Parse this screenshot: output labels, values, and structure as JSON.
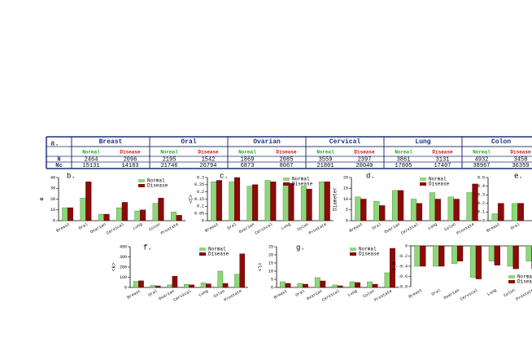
{
  "table": {
    "label": "a.",
    "columns": [
      "Breast",
      "Oral",
      "Ovarian",
      "Cervical",
      "Lung",
      "Colon"
    ],
    "subheaders": [
      "Normal",
      "Disease"
    ],
    "rows": [
      {
        "label": "N",
        "values": [
          2464,
          2096,
          2195,
          1542,
          1869,
          2085,
          3559,
          2397,
          3861,
          3131,
          4932,
          3458
        ]
      },
      {
        "label": "Nc",
        "values": [
          15131,
          14183,
          21746,
          26794,
          6873,
          8067,
          21801,
          20040,
          17805,
          17407,
          38967,
          36359
        ]
      }
    ]
  },
  "chart_data": [
    {
      "type": "bar",
      "title": "b.",
      "ylabel": "Φ",
      "legend": true,
      "categories": [
        "Breast",
        "Oral",
        "Ovarian",
        "Cervical",
        "Lung",
        "Colon",
        "Prostate"
      ],
      "series": [
        {
          "name": "Normal",
          "color": "#8fd67a",
          "values": [
            12,
            21,
            6,
            12,
            9,
            16,
            8
          ]
        },
        {
          "name": "Disease",
          "color": "#8b0a0a",
          "values": [
            12,
            36,
            6,
            17,
            10,
            21,
            5
          ]
        }
      ],
      "ylim": [
        0,
        40
      ],
      "yticks": [
        0,
        10,
        20,
        30,
        40
      ]
    },
    {
      "type": "bar",
      "title": "c.",
      "ylabel": "<C>",
      "legend": true,
      "categories": [
        "Breast",
        "Oral",
        "Ovarian",
        "Cervical",
        "Lung",
        "Colon",
        "Prostate"
      ],
      "series": [
        {
          "name": "Normal",
          "color": "#8fd67a",
          "values": [
            0.27,
            0.27,
            0.24,
            0.28,
            0.26,
            0.24,
            0.27
          ]
        },
        {
          "name": "Disease",
          "color": "#8b0a0a",
          "values": [
            0.28,
            0.3,
            0.25,
            0.27,
            0.26,
            0.22,
            0.27
          ]
        }
      ],
      "ylim": [
        0,
        0.3
      ],
      "yticks": [
        0,
        0.05,
        0.1,
        0.15,
        0.2,
        0.25,
        0.3
      ]
    },
    {
      "type": "bar",
      "title": "d.",
      "ylabel": "Diameter",
      "legend": true,
      "categories": [
        "Breast",
        "Oral",
        "Ovarian",
        "Cervical",
        "Lung",
        "Colon",
        "Prostate"
      ],
      "series": [
        {
          "name": "Normal",
          "color": "#8fd67a",
          "values": [
            11,
            9,
            14,
            10,
            13,
            11,
            13
          ]
        },
        {
          "name": "Disease",
          "color": "#8b0a0a",
          "values": [
            10,
            7,
            14,
            8,
            10,
            10,
            17
          ]
        }
      ],
      "ylim": [
        0,
        20
      ],
      "yticks": [
        0,
        5,
        10,
        15,
        20
      ]
    },
    {
      "type": "bar",
      "title": "e.",
      "legend": true,
      "categories": [
        "Breast",
        "Oral"
      ],
      "series": [
        {
          "name": "Normal",
          "color": "#8fd67a",
          "values": [
            0.08,
            0.2
          ]
        },
        {
          "name": "Disease",
          "color": "#8b0a0a",
          "values": [
            0.2,
            0.2
          ]
        }
      ],
      "ylim": [
        0,
        0.5
      ],
      "yticks": [
        0,
        0.1,
        0.2,
        0.3,
        0.4,
        0.5
      ]
    },
    {
      "type": "bar",
      "title": "f.",
      "ylabel": "<k>",
      "legend": true,
      "categories": [
        "Breast",
        "Oral",
        "Ovarian",
        "Cervical",
        "Lung",
        "Colon",
        "Prostate"
      ],
      "series": [
        {
          "name": "Normal",
          "color": "#8fd67a",
          "values": [
            60,
            20,
            25,
            30,
            45,
            160,
            130
          ]
        },
        {
          "name": "Disease",
          "color": "#8b0a0a",
          "values": [
            65,
            15,
            110,
            25,
            35,
            40,
            330
          ]
        }
      ],
      "ylim": [
        0,
        400
      ],
      "yticks": [
        0,
        100,
        200,
        300,
        400
      ]
    },
    {
      "type": "bar",
      "title": "g.",
      "ylabel": "<l>",
      "legend": true,
      "categories": [
        "Breast",
        "Oral",
        "Ovarian",
        "Cervical",
        "Lung",
        "Colon",
        "Prostate"
      ],
      "series": [
        {
          "name": "Normal",
          "color": "#8fd67a",
          "values": [
            3.5,
            2.5,
            6,
            1.5,
            3.5,
            3.5,
            9
          ]
        },
        {
          "name": "Disease",
          "color": "#8b0a0a",
          "values": [
            2.5,
            2,
            4,
            1,
            3,
            2,
            24
          ]
        }
      ],
      "ylim": [
        0,
        25
      ],
      "yticks": [
        0,
        5,
        10,
        15,
        20,
        25
      ]
    },
    {
      "type": "bar",
      "ylabel": "C_N",
      "legend": true,
      "categories": [
        "Breast",
        "Oral",
        "Ovarian",
        "Cervical",
        "Lung",
        "Colon",
        "Prostate"
      ],
      "series": [
        {
          "name": "Normal",
          "color": "#8fd67a",
          "values": [
            -0.4,
            -0.4,
            -0.35,
            -0.62,
            -0.3,
            -0.4,
            -0.3
          ]
        },
        {
          "name": "Disease",
          "color": "#8b0a0a",
          "values": [
            -0.4,
            -0.4,
            -0.3,
            -0.65,
            -0.38,
            -0.45,
            -0.45
          ]
        }
      ],
      "ylim": [
        -0.8,
        0
      ],
      "yticks": [
        -0.8,
        -0.6,
        -0.4,
        -0.2,
        0
      ]
    }
  ]
}
